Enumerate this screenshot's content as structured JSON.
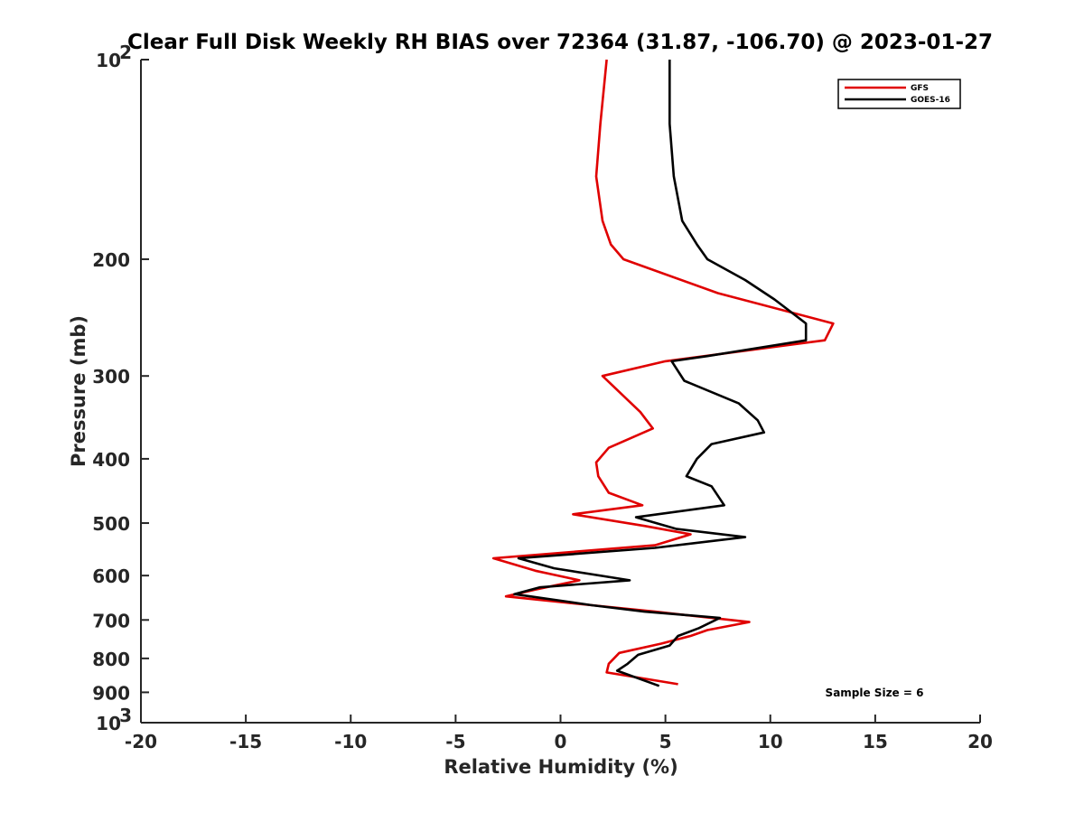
{
  "chart_data": {
    "type": "line",
    "title": "Clear Full Disk Weekly RH BIAS over 72364 (31.87, -106.70) @ 2023-01-27",
    "xlabel": "Relative Humidity (%)",
    "ylabel": "Pressure (mb)",
    "xlim": [
      -20,
      20
    ],
    "ylim": [
      100,
      1000
    ],
    "yscale": "log",
    "y_reversed": true,
    "grid": false,
    "legend_position": "top-right",
    "x_ticks": [
      "-20",
      "-15",
      "-10",
      "-5",
      "0",
      "5",
      "10",
      "15",
      "20"
    ],
    "x_tick_values": [
      -20,
      -15,
      -10,
      -5,
      0,
      5,
      10,
      15,
      20
    ],
    "y_ticks": [
      {
        "value": 100,
        "base": "10",
        "exp": "2"
      },
      {
        "value": 200,
        "base": "200",
        "exp": ""
      },
      {
        "value": 300,
        "base": "300",
        "exp": ""
      },
      {
        "value": 400,
        "base": "400",
        "exp": ""
      },
      {
        "value": 500,
        "base": "500",
        "exp": ""
      },
      {
        "value": 600,
        "base": "600",
        "exp": ""
      },
      {
        "value": 700,
        "base": "700",
        "exp": ""
      },
      {
        "value": 800,
        "base": "800",
        "exp": ""
      },
      {
        "value": 900,
        "base": "900",
        "exp": ""
      },
      {
        "value": 1000,
        "base": "10",
        "exp": "3"
      }
    ],
    "series": [
      {
        "name": "GFS",
        "color": "#e00000",
        "points": [
          [
            2.2,
            100
          ],
          [
            1.9,
            125
          ],
          [
            1.7,
            150
          ],
          [
            2.0,
            175
          ],
          [
            2.4,
            190
          ],
          [
            3.0,
            200
          ],
          [
            7.5,
            225
          ],
          [
            13.0,
            250
          ],
          [
            12.6,
            265
          ],
          [
            5.0,
            285
          ],
          [
            2.0,
            300
          ],
          [
            3.8,
            340
          ],
          [
            4.4,
            360
          ],
          [
            2.3,
            385
          ],
          [
            1.7,
            405
          ],
          [
            1.8,
            425
          ],
          [
            2.3,
            450
          ],
          [
            3.9,
            470
          ],
          [
            0.6,
            485
          ],
          [
            4.0,
            505
          ],
          [
            6.2,
            520
          ],
          [
            4.5,
            540
          ],
          [
            -3.2,
            565
          ],
          [
            -1.2,
            590
          ],
          [
            0.9,
            610
          ],
          [
            -1.2,
            630
          ],
          [
            -2.6,
            645
          ],
          [
            1.5,
            665
          ],
          [
            4.5,
            680
          ],
          [
            9.0,
            705
          ],
          [
            7.0,
            725
          ],
          [
            6.2,
            740
          ],
          [
            4.8,
            760
          ],
          [
            2.8,
            785
          ],
          [
            2.3,
            815
          ],
          [
            2.2,
            840
          ],
          [
            5.6,
            875
          ]
        ]
      },
      {
        "name": "GOES-16",
        "color": "#000000",
        "points": [
          [
            5.2,
            100
          ],
          [
            5.2,
            125
          ],
          [
            5.4,
            150
          ],
          [
            5.8,
            175
          ],
          [
            6.5,
            190
          ],
          [
            7.0,
            200
          ],
          [
            8.8,
            215
          ],
          [
            10.2,
            230
          ],
          [
            11.7,
            250
          ],
          [
            11.7,
            265
          ],
          [
            7.0,
            280
          ],
          [
            5.3,
            285
          ],
          [
            5.9,
            305
          ],
          [
            8.5,
            330
          ],
          [
            9.4,
            350
          ],
          [
            9.7,
            365
          ],
          [
            7.2,
            380
          ],
          [
            6.5,
            400
          ],
          [
            6.0,
            425
          ],
          [
            7.2,
            440
          ],
          [
            7.8,
            470
          ],
          [
            3.6,
            490
          ],
          [
            5.5,
            510
          ],
          [
            8.8,
            525
          ],
          [
            4.5,
            545
          ],
          [
            -2.0,
            565
          ],
          [
            -0.3,
            585
          ],
          [
            3.3,
            610
          ],
          [
            -1.0,
            625
          ],
          [
            -2.2,
            640
          ],
          [
            1.5,
            665
          ],
          [
            4.0,
            680
          ],
          [
            7.6,
            695
          ],
          [
            6.6,
            720
          ],
          [
            5.6,
            740
          ],
          [
            5.2,
            765
          ],
          [
            3.7,
            790
          ],
          [
            3.2,
            815
          ],
          [
            2.7,
            835
          ],
          [
            4.7,
            880
          ]
        ]
      }
    ],
    "legend": [
      "GFS",
      "GOES-16"
    ],
    "annotation": "Sample Size = 6"
  }
}
